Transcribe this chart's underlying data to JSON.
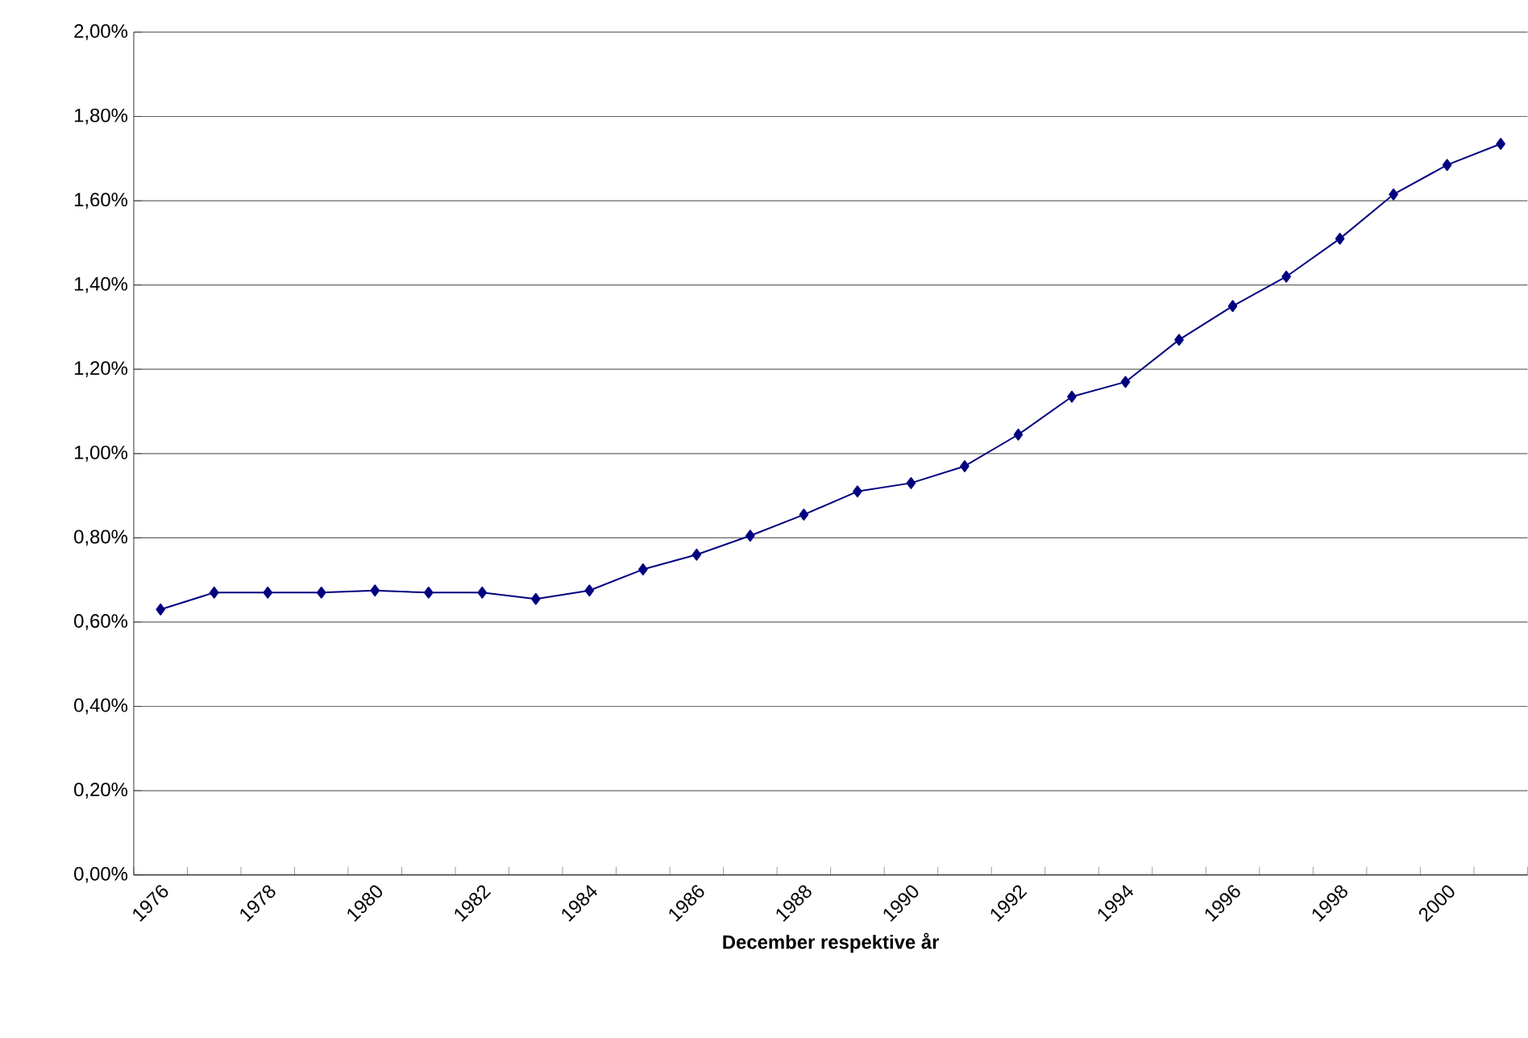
{
  "chart_data": {
    "type": "line",
    "xlabel": "December respektive år",
    "categories": [
      "1976",
      null,
      "1978",
      null,
      "1980",
      null,
      "1982",
      null,
      "1984",
      null,
      "1986",
      null,
      "1988",
      null,
      "1990",
      null,
      "1992",
      null,
      "1994",
      null,
      "1996",
      null,
      "1998",
      null,
      "2000",
      null
    ],
    "series": [
      {
        "color": "#000080",
        "values": [
          0.63,
          0.67,
          0.67,
          0.67,
          0.675,
          0.67,
          0.67,
          0.655,
          0.675,
          0.725,
          0.76,
          0.805,
          0.855,
          0.91,
          0.93,
          0.97,
          1.045,
          1.135,
          1.17,
          1.27,
          1.35,
          1.42,
          1.51,
          1.615,
          1.685,
          1.735
        ]
      }
    ],
    "ylim": [
      0,
      2
    ],
    "yticks": [
      {
        "value": 0,
        "label": "0,00%"
      },
      {
        "value": 0.2,
        "label": "0,20%"
      },
      {
        "value": 0.4,
        "label": "0,40%"
      },
      {
        "value": 0.6,
        "label": "0,60%"
      },
      {
        "value": 0.8,
        "label": "0,80%"
      },
      {
        "value": 1.0,
        "label": "1,00%"
      },
      {
        "value": 1.2,
        "label": "1,20%"
      },
      {
        "value": 1.4,
        "label": "1,40%"
      },
      {
        "value": 1.6,
        "label": "1,60%"
      },
      {
        "value": 1.8,
        "label": "1,80%"
      },
      {
        "value": 2.0,
        "label": "2,00%"
      }
    ],
    "grid": "y",
    "marker": "diamond",
    "line_style": "solid"
  }
}
